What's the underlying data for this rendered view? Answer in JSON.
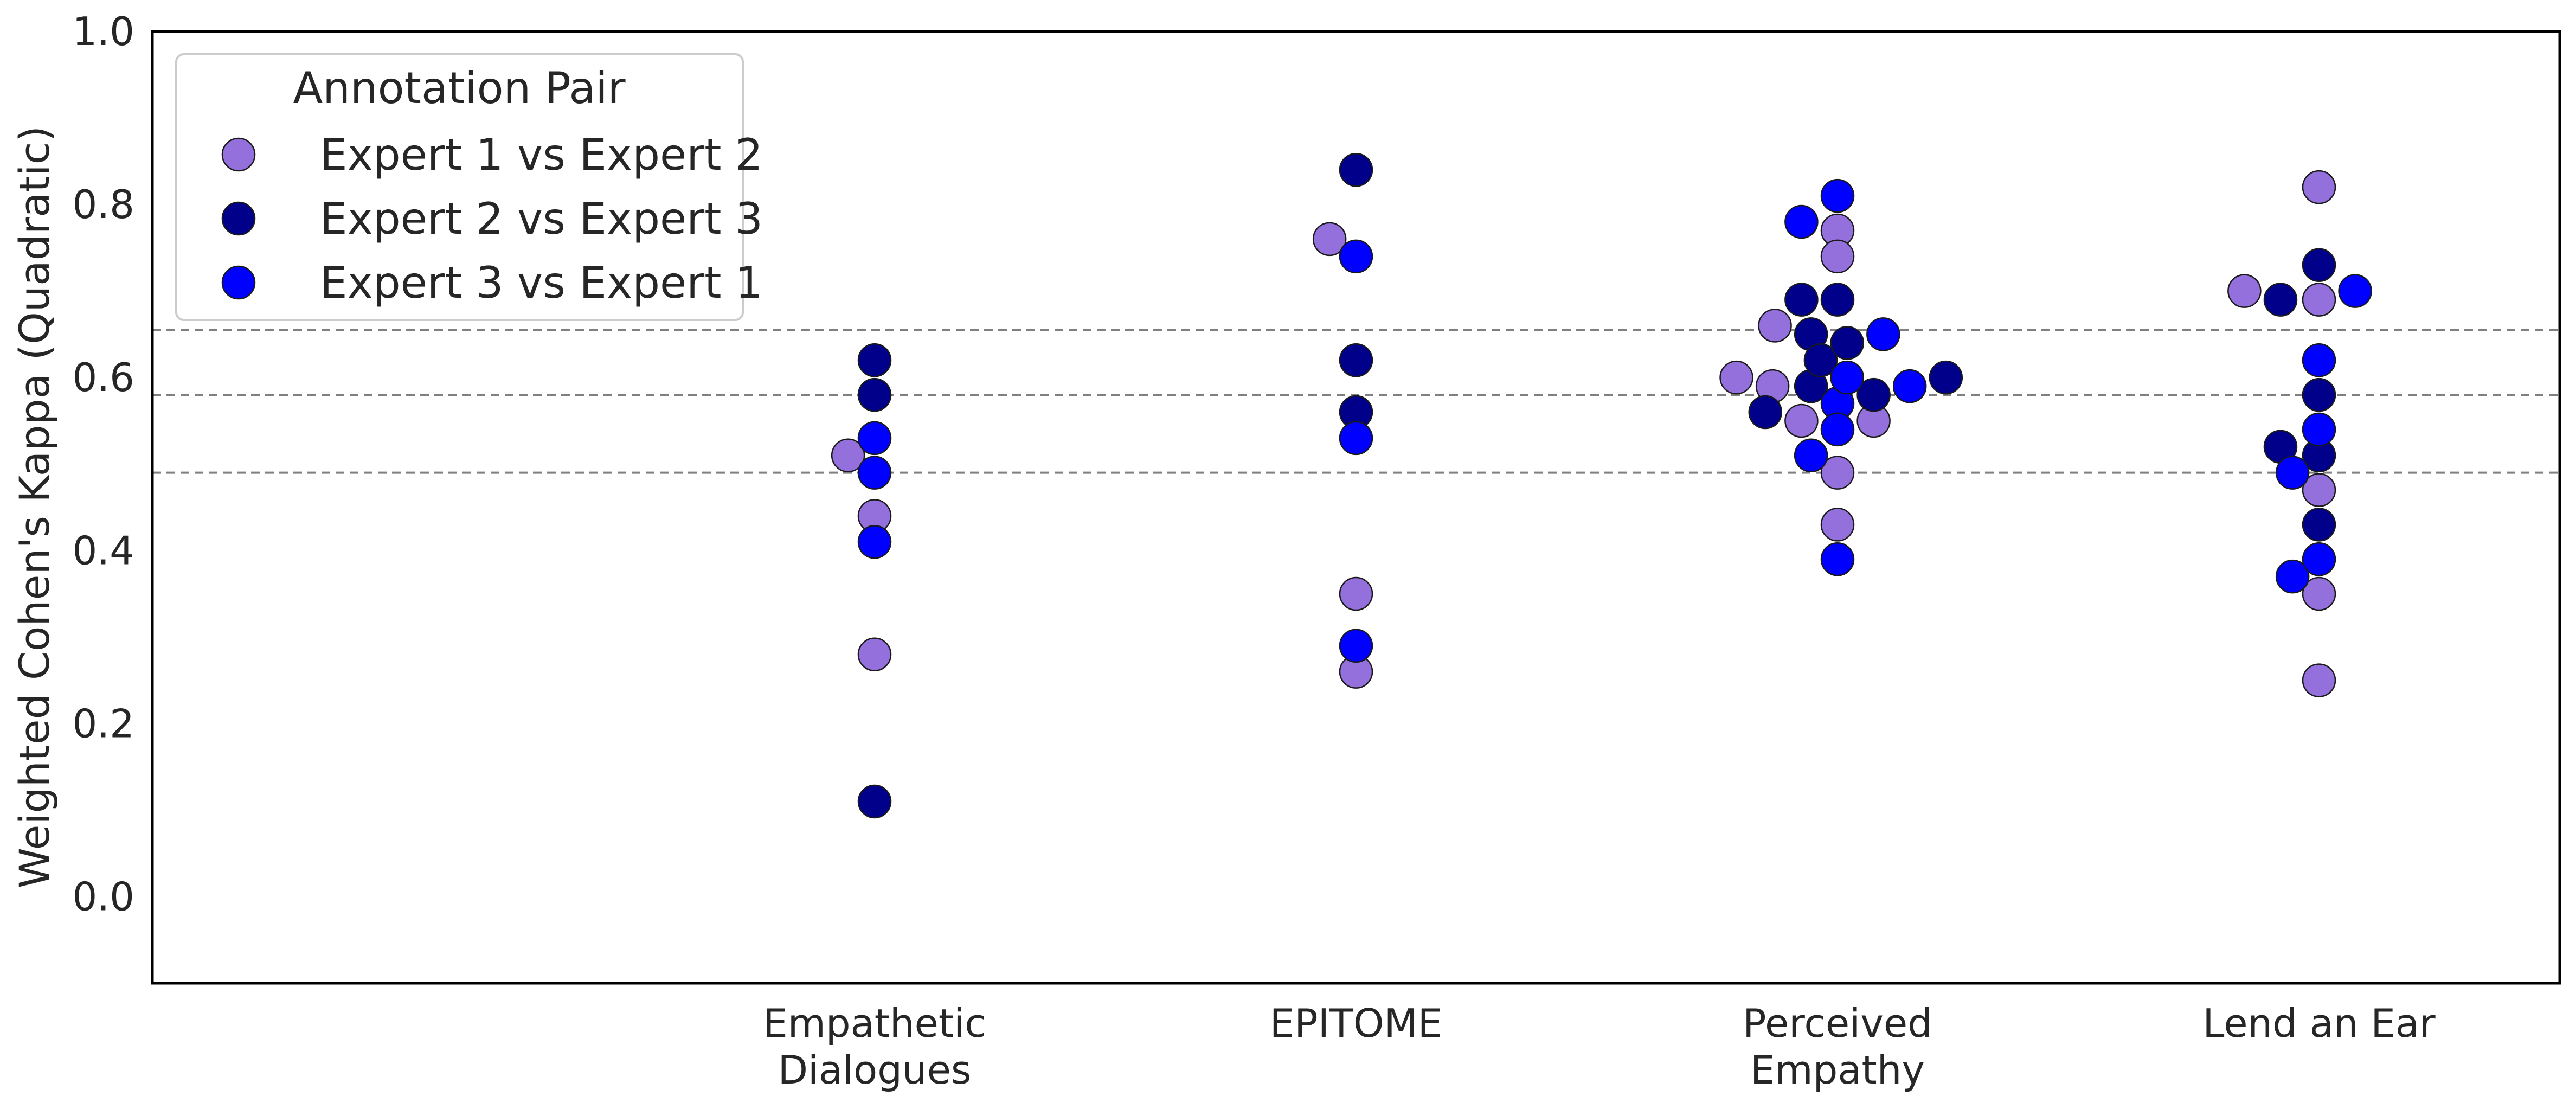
{
  "chart_data": {
    "type": "scatter",
    "ylabel": "Weighted Cohen's Kappa (Quadratic)",
    "xlabel": "",
    "ylim": [
      -0.1,
      1.0
    ],
    "yticks": [
      "0.0",
      "0.2",
      "0.4",
      "0.6",
      "0.8",
      "1.0"
    ],
    "categories": [
      {
        "line1": "Empathetic",
        "line2": "Dialogues"
      },
      {
        "line1": "EPITOME",
        "line2": ""
      },
      {
        "line1": "Perceived",
        "line2": "Empathy"
      },
      {
        "line1": "Lend an Ear",
        "line2": ""
      }
    ],
    "reference_lines": [
      0.49,
      0.58,
      0.655
    ],
    "grid": false,
    "legend": {
      "title": "Annotation Pair",
      "placement": "top-left"
    },
    "series": [
      {
        "name": "Expert 1 vs Expert 2",
        "color": "#9370db",
        "points": [
          {
            "x": 0,
            "dx": -0.055,
            "y": 0.51
          },
          {
            "x": 0,
            "dx": 0,
            "y": 0.44
          },
          {
            "x": 0,
            "dx": 0,
            "y": 0.28
          },
          {
            "x": 1,
            "dx": -0.055,
            "y": 0.76
          },
          {
            "x": 1,
            "dx": 0,
            "y": 0.35
          },
          {
            "x": 1,
            "dx": 0,
            "y": 0.26
          },
          {
            "x": 2,
            "dx": -0.21,
            "y": 0.6
          },
          {
            "x": 2,
            "dx": -0.135,
            "y": 0.59
          },
          {
            "x": 2,
            "dx": -0.13,
            "y": 0.66
          },
          {
            "x": 2,
            "dx": -0.075,
            "y": 0.55
          },
          {
            "x": 2,
            "dx": 0,
            "y": 0.77
          },
          {
            "x": 2,
            "dx": 0,
            "y": 0.74
          },
          {
            "x": 2,
            "dx": 0,
            "y": 0.49
          },
          {
            "x": 2,
            "dx": 0,
            "y": 0.43
          },
          {
            "x": 2,
            "dx": 0.075,
            "y": 0.55
          },
          {
            "x": 3,
            "dx": -0.155,
            "y": 0.7
          },
          {
            "x": 3,
            "dx": 0,
            "y": 0.82
          },
          {
            "x": 3,
            "dx": 0,
            "y": 0.69
          },
          {
            "x": 3,
            "dx": 0,
            "y": 0.47
          },
          {
            "x": 3,
            "dx": 0,
            "y": 0.35
          },
          {
            "x": 3,
            "dx": 0,
            "y": 0.25
          }
        ]
      },
      {
        "name": "Expert 2 vs Expert 3",
        "color": "#00008b",
        "points": [
          {
            "x": 0,
            "dx": 0,
            "y": 0.62
          },
          {
            "x": 0,
            "dx": 0,
            "y": 0.58
          },
          {
            "x": 0,
            "dx": 0,
            "y": 0.11
          },
          {
            "x": 1,
            "dx": 0,
            "y": 0.84
          },
          {
            "x": 1,
            "dx": 0,
            "y": 0.62
          },
          {
            "x": 1,
            "dx": 0,
            "y": 0.56
          },
          {
            "x": 2,
            "dx": -0.15,
            "y": 0.56
          },
          {
            "x": 2,
            "dx": -0.075,
            "y": 0.69
          },
          {
            "x": 2,
            "dx": -0.055,
            "y": 0.65
          },
          {
            "x": 2,
            "dx": -0.055,
            "y": 0.59
          },
          {
            "x": 2,
            "dx": -0.035,
            "y": 0.62
          },
          {
            "x": 2,
            "dx": 0,
            "y": 0.69
          },
          {
            "x": 2,
            "dx": 0.02,
            "y": 0.64
          },
          {
            "x": 2,
            "dx": 0.075,
            "y": 0.58
          },
          {
            "x": 2,
            "dx": 0.225,
            "y": 0.6
          },
          {
            "x": 3,
            "dx": -0.08,
            "y": 0.69
          },
          {
            "x": 3,
            "dx": -0.08,
            "y": 0.52
          },
          {
            "x": 3,
            "dx": 0,
            "y": 0.73
          },
          {
            "x": 3,
            "dx": 0,
            "y": 0.58
          },
          {
            "x": 3,
            "dx": 0,
            "y": 0.51
          },
          {
            "x": 3,
            "dx": 0,
            "y": 0.43
          }
        ]
      },
      {
        "name": "Expert 3 vs Expert 1",
        "color": "#0000ff",
        "points": [
          {
            "x": 0,
            "dx": 0,
            "y": 0.53
          },
          {
            "x": 0,
            "dx": 0,
            "y": 0.49
          },
          {
            "x": 0,
            "dx": 0,
            "y": 0.41
          },
          {
            "x": 1,
            "dx": 0,
            "y": 0.74
          },
          {
            "x": 1,
            "dx": 0,
            "y": 0.53
          },
          {
            "x": 1,
            "dx": 0,
            "y": 0.29
          },
          {
            "x": 2,
            "dx": -0.075,
            "y": 0.78
          },
          {
            "x": 2,
            "dx": -0.055,
            "y": 0.51
          },
          {
            "x": 2,
            "dx": 0,
            "y": 0.81
          },
          {
            "x": 2,
            "dx": 0,
            "y": 0.57
          },
          {
            "x": 2,
            "dx": 0,
            "y": 0.54
          },
          {
            "x": 2,
            "dx": 0,
            "y": 0.39
          },
          {
            "x": 2,
            "dx": 0.02,
            "y": 0.6
          },
          {
            "x": 2,
            "dx": 0.095,
            "y": 0.65
          },
          {
            "x": 2,
            "dx": 0.15,
            "y": 0.59
          },
          {
            "x": 3,
            "dx": -0.055,
            "y": 0.49
          },
          {
            "x": 3,
            "dx": -0.055,
            "y": 0.37
          },
          {
            "x": 3,
            "dx": 0,
            "y": 0.62
          },
          {
            "x": 3,
            "dx": 0,
            "y": 0.54
          },
          {
            "x": 3,
            "dx": 0,
            "y": 0.39
          },
          {
            "x": 3,
            "dx": 0.075,
            "y": 0.7
          }
        ]
      }
    ]
  }
}
